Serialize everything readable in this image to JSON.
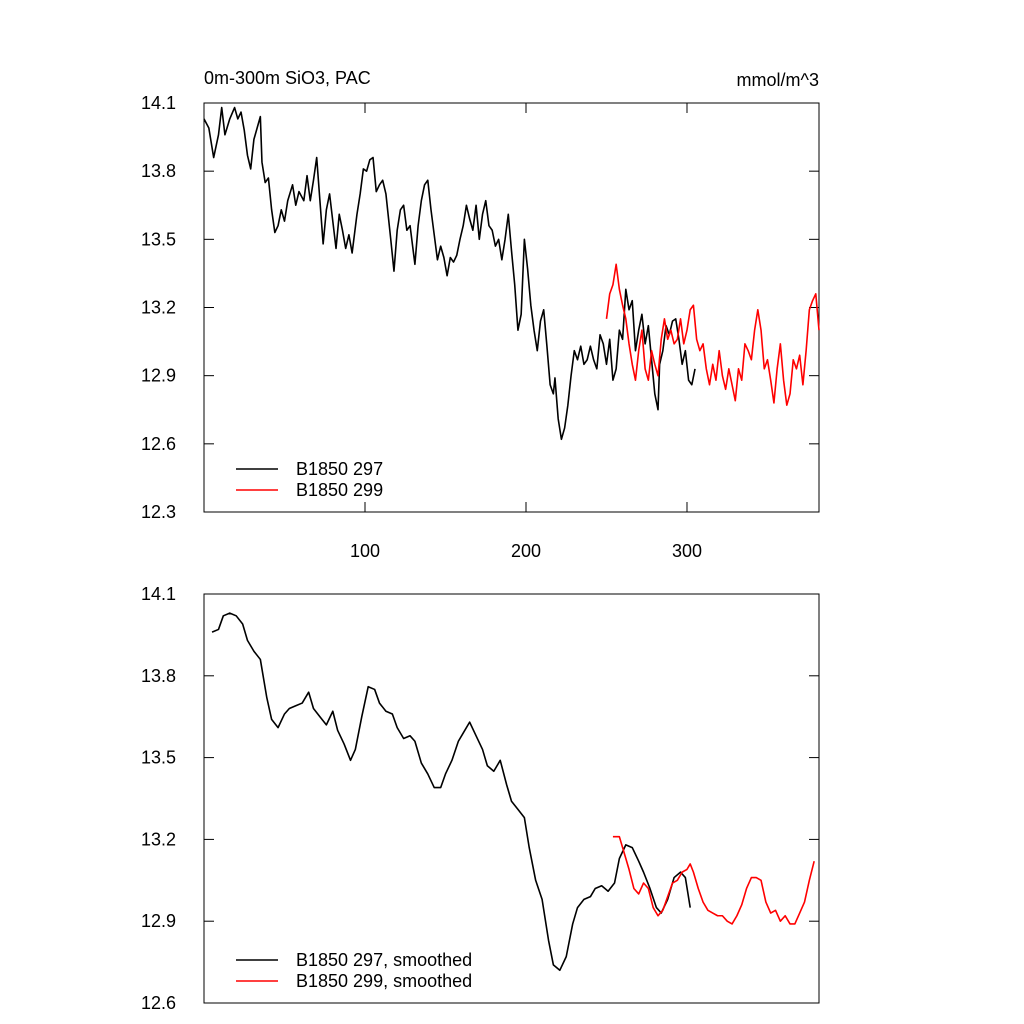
{
  "chart_data": [
    {
      "type": "line",
      "title": "0m-300m SiO3, PAC",
      "units": "mmol/m^3",
      "legend": "lower left",
      "xlim": [
        0,
        382
      ],
      "ylim": [
        12.3,
        14.1
      ],
      "xticks": [
        100,
        200,
        300
      ],
      "yticks": [
        12.3,
        12.6,
        12.9,
        13.2,
        13.5,
        13.8,
        14.1
      ],
      "series": [
        {
          "name": "B1850 297",
          "color": "#000000",
          "x": [
            0,
            3,
            6,
            9,
            11,
            13,
            16,
            19,
            21,
            23,
            25,
            27,
            29,
            31,
            33,
            35,
            36,
            38,
            40,
            42,
            44,
            46,
            48,
            50,
            52,
            55,
            57,
            59,
            62,
            64,
            66,
            68,
            70,
            72,
            74,
            76,
            78,
            80,
            82,
            84,
            86,
            88,
            90,
            92,
            95,
            97,
            99,
            101,
            103,
            105,
            107,
            109,
            111,
            113,
            116,
            118,
            120,
            122,
            124,
            126,
            128,
            131,
            133,
            135,
            137,
            139,
            141,
            143,
            145,
            147,
            149,
            151,
            153,
            155,
            157,
            159,
            161,
            163,
            165,
            167,
            169,
            171,
            173,
            175,
            177,
            179,
            181,
            183,
            185,
            187,
            189,
            191,
            193,
            195,
            197,
            199,
            201,
            203,
            205,
            207,
            209,
            211,
            213,
            215,
            217,
            218,
            220,
            222,
            224,
            226,
            228,
            230,
            232,
            234,
            236,
            238,
            240,
            242,
            244,
            246,
            248,
            250,
            252,
            254,
            256,
            258,
            260,
            262,
            264,
            266,
            268,
            270,
            272,
            274,
            276,
            278,
            280,
            282,
            283,
            285,
            287,
            289,
            291,
            293,
            295,
            297,
            299,
            301,
            303,
            305
          ],
          "values": [
            14.03,
            13.99,
            13.86,
            13.96,
            14.08,
            13.96,
            14.03,
            14.08,
            14.03,
            14.06,
            13.98,
            13.87,
            13.81,
            13.94,
            13.99,
            14.04,
            13.84,
            13.75,
            13.77,
            13.63,
            13.53,
            13.56,
            13.63,
            13.58,
            13.67,
            13.74,
            13.65,
            13.71,
            13.67,
            13.78,
            13.67,
            13.76,
            13.86,
            13.67,
            13.48,
            13.63,
            13.7,
            13.58,
            13.46,
            13.61,
            13.54,
            13.46,
            13.52,
            13.44,
            13.61,
            13.7,
            13.81,
            13.8,
            13.85,
            13.86,
            13.71,
            13.74,
            13.76,
            13.7,
            13.5,
            13.36,
            13.54,
            13.63,
            13.65,
            13.54,
            13.56,
            13.39,
            13.56,
            13.67,
            13.74,
            13.76,
            13.63,
            13.52,
            13.41,
            13.47,
            13.42,
            13.34,
            13.42,
            13.4,
            13.43,
            13.5,
            13.56,
            13.65,
            13.59,
            13.54,
            13.65,
            13.5,
            13.61,
            13.67,
            13.56,
            13.54,
            13.47,
            13.5,
            13.41,
            13.5,
            13.61,
            13.45,
            13.3,
            13.1,
            13.17,
            13.5,
            13.37,
            13.21,
            13.1,
            13.01,
            13.14,
            13.19,
            13.03,
            12.86,
            12.82,
            12.89,
            12.71,
            12.62,
            12.67,
            12.77,
            12.9,
            13.01,
            12.97,
            13.03,
            12.95,
            12.97,
            13.03,
            12.97,
            12.93,
            13.08,
            13.04,
            12.95,
            13.06,
            12.88,
            12.93,
            13.1,
            13.06,
            13.28,
            13.19,
            13.23,
            13.01,
            13.1,
            13.17,
            13.04,
            13.12,
            12.97,
            12.82,
            12.75,
            12.95,
            13.01,
            13.12,
            13.08,
            13.14,
            13.15,
            13.06,
            12.95,
            13.01,
            12.88,
            12.86,
            12.93
          ]
        },
        {
          "name": "B1850 299",
          "color": "#ff0000",
          "x": [
            250,
            252,
            254,
            256,
            258,
            260,
            262,
            264,
            266,
            268,
            270,
            272,
            274,
            276,
            278,
            280,
            282,
            284,
            286,
            288,
            290,
            292,
            294,
            296,
            298,
            300,
            302,
            304,
            306,
            308,
            310,
            312,
            314,
            316,
            318,
            320,
            322,
            324,
            326,
            328,
            330,
            332,
            334,
            336,
            338,
            340,
            342,
            344,
            346,
            348,
            350,
            352,
            354,
            356,
            358,
            360,
            362,
            364,
            366,
            368,
            370,
            372,
            374,
            376,
            378,
            380,
            382
          ],
          "values": [
            13.15,
            13.26,
            13.3,
            13.39,
            13.28,
            13.21,
            13.15,
            13.04,
            12.95,
            12.88,
            13.01,
            13.1,
            12.93,
            12.88,
            13.01,
            12.95,
            12.9,
            13.06,
            13.15,
            13.06,
            13.1,
            13.04,
            13.06,
            13.15,
            13.04,
            13.1,
            13.19,
            13.21,
            13.06,
            13.01,
            13.04,
            12.93,
            12.86,
            12.95,
            12.88,
            13.01,
            12.9,
            12.84,
            12.93,
            12.86,
            12.79,
            12.93,
            12.88,
            13.04,
            13.01,
            12.97,
            13.1,
            13.19,
            13.1,
            12.93,
            12.97,
            12.88,
            12.78,
            12.93,
            13.04,
            12.88,
            12.77,
            12.82,
            12.97,
            12.93,
            12.99,
            12.86,
            13.01,
            13.19,
            13.23,
            13.26,
            13.1
          ]
        }
      ]
    },
    {
      "type": "line",
      "legend": "lower left",
      "xlim": [
        0,
        382
      ],
      "ylim": [
        12.6,
        14.1
      ],
      "yticks": [
        12.6,
        12.9,
        13.2,
        13.5,
        13.8,
        14.1
      ],
      "series": [
        {
          "name": "B1850 297, smoothed",
          "color": "#000000",
          "x": [
            5,
            9,
            12,
            16,
            20,
            24,
            27,
            31,
            35,
            39,
            42,
            46,
            50,
            53,
            57,
            61,
            65,
            68,
            72,
            76,
            80,
            83,
            87,
            91,
            94,
            98,
            102,
            106,
            109,
            113,
            117,
            120,
            124,
            128,
            131,
            135,
            139,
            143,
            147,
            150,
            154,
            158,
            161,
            165,
            169,
            173,
            176,
            180,
            184,
            188,
            191,
            195,
            199,
            202,
            206,
            210,
            214,
            217,
            221,
            225,
            229,
            232,
            236,
            240,
            243,
            247,
            251,
            255,
            258,
            262,
            266,
            270,
            273,
            277,
            281,
            284,
            288,
            292,
            296,
            299,
            302
          ],
          "values": [
            13.96,
            13.97,
            14.02,
            14.03,
            14.02,
            13.99,
            13.93,
            13.89,
            13.86,
            13.72,
            13.64,
            13.61,
            13.66,
            13.68,
            13.69,
            13.7,
            13.74,
            13.68,
            13.65,
            13.62,
            13.67,
            13.6,
            13.55,
            13.49,
            13.53,
            13.65,
            13.76,
            13.75,
            13.7,
            13.67,
            13.66,
            13.61,
            13.57,
            13.58,
            13.56,
            13.48,
            13.44,
            13.39,
            13.39,
            13.44,
            13.49,
            13.56,
            13.59,
            13.63,
            13.58,
            13.53,
            13.47,
            13.45,
            13.49,
            13.4,
            13.34,
            13.31,
            13.28,
            13.17,
            13.05,
            12.98,
            12.83,
            12.74,
            12.72,
            12.77,
            12.89,
            12.95,
            12.98,
            12.99,
            13.02,
            13.03,
            13.01,
            13.04,
            13.13,
            13.18,
            13.17,
            13.12,
            13.08,
            13.02,
            12.95,
            12.93,
            12.98,
            13.06,
            13.08,
            13.06,
            12.95
          ]
        },
        {
          "name": "B1850 299, smoothed",
          "color": "#ff0000",
          "x": [
            254,
            258,
            261,
            264,
            267,
            270,
            273,
            276,
            279,
            282,
            285,
            288,
            291,
            294,
            297,
            300,
            302,
            304,
            307,
            310,
            313,
            316,
            319,
            322,
            325,
            328,
            331,
            334,
            337,
            340,
            343,
            346,
            349,
            352,
            355,
            358,
            361,
            364,
            367,
            370,
            373,
            376,
            379
          ],
          "values": [
            13.21,
            13.21,
            13.15,
            13.09,
            13.02,
            13.0,
            13.04,
            13.02,
            12.95,
            12.92,
            12.94,
            12.99,
            13.04,
            13.05,
            13.08,
            13.09,
            13.11,
            13.08,
            13.02,
            12.97,
            12.94,
            12.93,
            12.92,
            12.92,
            12.9,
            12.89,
            12.92,
            12.96,
            13.02,
            13.06,
            13.06,
            13.05,
            12.97,
            12.93,
            12.94,
            12.9,
            12.92,
            12.89,
            12.89,
            12.93,
            12.97,
            13.05,
            13.12
          ]
        }
      ]
    }
  ]
}
